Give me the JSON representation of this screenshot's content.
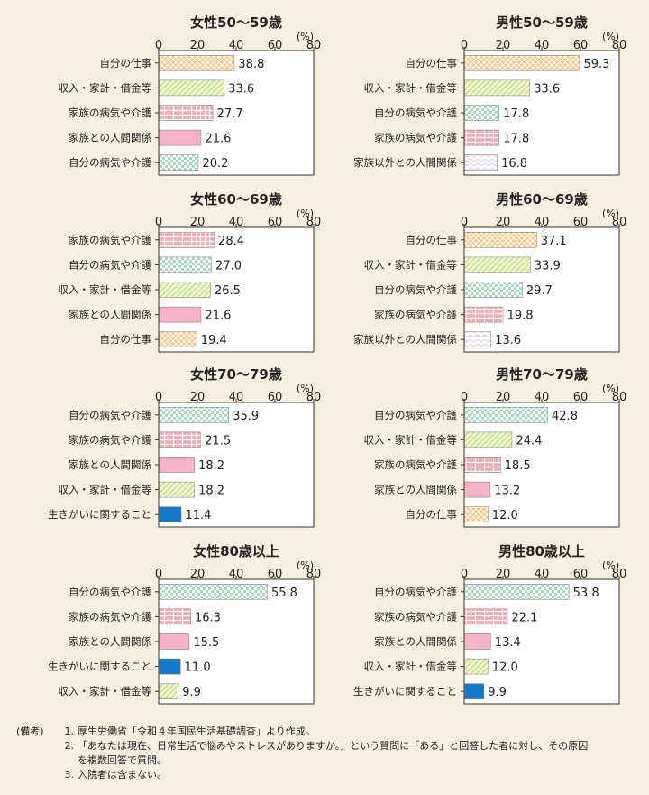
{
  "colors": {
    "work": "#f8c98a",
    "finance": "#d6e79a",
    "family_illness": "#f3a8ae",
    "relations": "#f7b3c8",
    "own_illness": "#a7d9c3",
    "other_relations": "#d8c8ea",
    "purpose": "#1479c9"
  },
  "chart_data": [
    {
      "type": "bar",
      "title": "女性50～59歳",
      "unit": "(%)",
      "ticks": [
        "0",
        "20",
        "40",
        "60",
        "80"
      ],
      "xlim": [
        0,
        80
      ],
      "categories": [
        "自分の仕事",
        "収入・家計・借金等",
        "家族の病気や介護",
        "家族との人間関係",
        "自分の病気や介護"
      ],
      "values": [
        38.8,
        33.6,
        27.7,
        21.6,
        20.2
      ],
      "labels": [
        "38.8",
        "33.6",
        "27.7",
        "21.6",
        "20.2"
      ],
      "styles": [
        "work",
        "finance",
        "family_illness",
        "relations",
        "own_illness"
      ]
    },
    {
      "type": "bar",
      "title": "男性50～59歳",
      "unit": "(%)",
      "ticks": [
        "0",
        "20",
        "40",
        "60",
        "80"
      ],
      "xlim": [
        0,
        80
      ],
      "categories": [
        "自分の仕事",
        "収入・家計・借金等",
        "自分の病気や介護",
        "家族の病気や介護",
        "家族以外との人間関係"
      ],
      "values": [
        59.3,
        33.6,
        17.8,
        17.8,
        16.8
      ],
      "labels": [
        "59.3",
        "33.6",
        "17.8",
        "17.8",
        "16.8"
      ],
      "styles": [
        "work",
        "finance",
        "own_illness",
        "family_illness",
        "other_relations"
      ]
    },
    {
      "type": "bar",
      "title": "女性60～69歳",
      "unit": "(%)",
      "ticks": [
        "0",
        "20",
        "40",
        "60",
        "80"
      ],
      "xlim": [
        0,
        80
      ],
      "categories": [
        "家族の病気や介護",
        "自分の病気や介護",
        "収入・家計・借金等",
        "家族との人間関係",
        "自分の仕事"
      ],
      "values": [
        28.4,
        27.0,
        26.5,
        21.6,
        19.4
      ],
      "labels": [
        "28.4",
        "27.0",
        "26.5",
        "21.6",
        "19.4"
      ],
      "styles": [
        "family_illness",
        "own_illness",
        "finance",
        "relations",
        "work"
      ]
    },
    {
      "type": "bar",
      "title": "男性60～69歳",
      "unit": "(%)",
      "ticks": [
        "0",
        "20",
        "40",
        "60",
        "80"
      ],
      "xlim": [
        0,
        80
      ],
      "categories": [
        "自分の仕事",
        "収入・家計・借金等",
        "自分の病気や介護",
        "家族の病気や介護",
        "家族以外との人間関係"
      ],
      "values": [
        37.1,
        33.9,
        29.7,
        19.8,
        13.6
      ],
      "labels": [
        "37.1",
        "33.9",
        "29.7",
        "19.8",
        "13.6"
      ],
      "styles": [
        "work",
        "finance",
        "own_illness",
        "family_illness",
        "other_relations"
      ]
    },
    {
      "type": "bar",
      "title": "女性70～79歳",
      "unit": "(%)",
      "ticks": [
        "0",
        "20",
        "40",
        "60",
        "80"
      ],
      "xlim": [
        0,
        80
      ],
      "categories": [
        "自分の病気や介護",
        "家族の病気や介護",
        "家族との人間関係",
        "収入・家計・借金等",
        "生きがいに関すること"
      ],
      "values": [
        35.9,
        21.5,
        18.2,
        18.2,
        11.4
      ],
      "labels": [
        "35.9",
        "21.5",
        "18.2",
        "18.2",
        "11.4"
      ],
      "styles": [
        "own_illness",
        "family_illness",
        "relations",
        "finance",
        "purpose"
      ]
    },
    {
      "type": "bar",
      "title": "男性70～79歳",
      "unit": "(%)",
      "ticks": [
        "0",
        "20",
        "40",
        "60",
        "80"
      ],
      "xlim": [
        0,
        80
      ],
      "categories": [
        "自分の病気や介護",
        "収入・家計・借金等",
        "家族の病気や介護",
        "家族との人間関係",
        "自分の仕事"
      ],
      "values": [
        42.8,
        24.4,
        18.5,
        13.2,
        12.0
      ],
      "labels": [
        "42.8",
        "24.4",
        "18.5",
        "13.2",
        "12.0"
      ],
      "styles": [
        "own_illness",
        "finance",
        "family_illness",
        "relations",
        "work"
      ]
    },
    {
      "type": "bar",
      "title": "女性80歳以上",
      "unit": "(%)",
      "ticks": [
        "0",
        "20",
        "40",
        "60",
        "80"
      ],
      "xlim": [
        0,
        80
      ],
      "categories": [
        "自分の病気や介護",
        "家族の病気や介護",
        "家族との人間関係",
        "生きがいに関すること",
        "収入・家計・借金等"
      ],
      "values": [
        55.8,
        16.3,
        15.5,
        11.0,
        9.9
      ],
      "labels": [
        "55.8",
        "16.3",
        "15.5",
        "11.0",
        "9.9"
      ],
      "styles": [
        "own_illness",
        "family_illness",
        "relations",
        "purpose",
        "finance"
      ]
    },
    {
      "type": "bar",
      "title": "男性80歳以上",
      "unit": "(%)",
      "ticks": [
        "0",
        "20",
        "40",
        "60",
        "80"
      ],
      "xlim": [
        0,
        80
      ],
      "categories": [
        "自分の病気や介護",
        "家族の病気や介護",
        "家族との人間関係",
        "収入・家計・借金等",
        "生きがいに関すること"
      ],
      "values": [
        53.8,
        22.1,
        13.4,
        12.0,
        9.9
      ],
      "labels": [
        "53.8",
        "22.1",
        "13.4",
        "12.0",
        "9.9"
      ],
      "styles": [
        "own_illness",
        "family_illness",
        "relations",
        "finance",
        "purpose"
      ]
    }
  ],
  "notes": {
    "head": "(備考)",
    "items": [
      {
        "num": "1.",
        "text": "厚生労働省「令和４年国民生活基礎調査」より作成。"
      },
      {
        "num": "2.",
        "text": "「あなたは現在、日常生活で悩みやストレスがありますか。」という質問に「ある」と回答した者に対し、その原因",
        "cont": "を複数回答で質問。"
      },
      {
        "num": "3.",
        "text": "入院者は含まない。"
      }
    ]
  }
}
